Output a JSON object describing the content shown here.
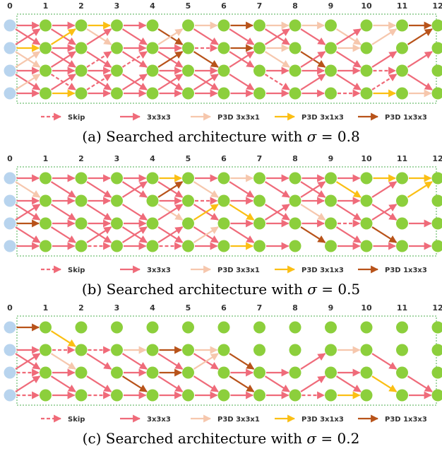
{
  "colors": {
    "skip": "#f06a78",
    "c333": "#ef6b7a",
    "p331": "#f6c7ad",
    "p313": "#fbbf14",
    "p133": "#b8531a",
    "node_green": "#8ccf3c",
    "node_blue": "#b8d4ee",
    "frame": "#4caf50"
  },
  "legend": [
    {
      "key": "skip",
      "label": "Skip",
      "dashed": true
    },
    {
      "key": "c333",
      "label": "3x3x3",
      "dashed": false
    },
    {
      "key": "p331",
      "label": "P3D 3x3x1",
      "dashed": false
    },
    {
      "key": "p313",
      "label": "P3D 3x1x3",
      "dashed": false
    },
    {
      "key": "p133",
      "label": "P3D 1x3x3",
      "dashed": false
    }
  ],
  "panels": [
    {
      "caption_prefix": "(a) Searched architecture with ",
      "caption_var": "σ",
      "caption_suffix": " = 0.8",
      "columns": [
        "0",
        "1",
        "2",
        "3",
        "4",
        "5",
        "6",
        "7",
        "8",
        "9",
        "10",
        "11",
        "12"
      ],
      "edges": [
        [
          0,
          0,
          0,
          "c333"
        ],
        [
          0,
          0,
          1,
          "c333"
        ],
        [
          0,
          1,
          0,
          "c333"
        ],
        [
          0,
          1,
          1,
          "p313"
        ],
        [
          0,
          1,
          2,
          "p331"
        ],
        [
          0,
          2,
          1,
          "p331"
        ],
        [
          0,
          2,
          2,
          "c333"
        ],
        [
          0,
          2,
          3,
          "c333"
        ],
        [
          0,
          3,
          2,
          "p331"
        ],
        [
          0,
          3,
          3,
          "c333"
        ],
        [
          1,
          0,
          0,
          "c333"
        ],
        [
          1,
          0,
          1,
          "c333"
        ],
        [
          1,
          1,
          0,
          "p313"
        ],
        [
          1,
          1,
          1,
          "c333"
        ],
        [
          1,
          1,
          2,
          "c333"
        ],
        [
          1,
          2,
          1,
          "c333"
        ],
        [
          1,
          2,
          2,
          "c333"
        ],
        [
          1,
          2,
          3,
          "skip"
        ],
        [
          1,
          3,
          2,
          "c333"
        ],
        [
          1,
          3,
          3,
          "p313"
        ],
        [
          2,
          0,
          0,
          "p313"
        ],
        [
          2,
          0,
          1,
          "p331"
        ],
        [
          2,
          1,
          0,
          "c333"
        ],
        [
          2,
          1,
          2,
          "c333"
        ],
        [
          2,
          2,
          1,
          "skip"
        ],
        [
          2,
          2,
          2,
          "c333"
        ],
        [
          2,
          2,
          3,
          "c333"
        ],
        [
          2,
          3,
          3,
          "c333"
        ],
        [
          2,
          3,
          2,
          "skip"
        ],
        [
          3,
          0,
          0,
          "c333"
        ],
        [
          3,
          0,
          1,
          "c333"
        ],
        [
          3,
          1,
          1,
          "c333"
        ],
        [
          3,
          1,
          2,
          "c333"
        ],
        [
          3,
          2,
          1,
          "skip"
        ],
        [
          3,
          2,
          3,
          "c333"
        ],
        [
          3,
          3,
          2,
          "c333"
        ],
        [
          3,
          3,
          3,
          "c333"
        ],
        [
          4,
          0,
          1,
          "p133"
        ],
        [
          4,
          1,
          0,
          "p331"
        ],
        [
          4,
          1,
          1,
          "c333"
        ],
        [
          4,
          1,
          2,
          "c333"
        ],
        [
          4,
          2,
          1,
          "p133"
        ],
        [
          4,
          2,
          2,
          "c333"
        ],
        [
          4,
          2,
          3,
          "c333"
        ],
        [
          4,
          3,
          2,
          "c333"
        ],
        [
          4,
          3,
          3,
          "c333"
        ],
        [
          5,
          0,
          0,
          "p331"
        ],
        [
          5,
          0,
          1,
          "c333"
        ],
        [
          5,
          1,
          1,
          "skip"
        ],
        [
          5,
          1,
          2,
          "p133"
        ],
        [
          5,
          2,
          2,
          "c333"
        ],
        [
          5,
          2,
          3,
          "c333"
        ],
        [
          5,
          3,
          2,
          "c333"
        ],
        [
          5,
          3,
          3,
          "c333"
        ],
        [
          6,
          0,
          0,
          "p133"
        ],
        [
          6,
          0,
          1,
          "c333"
        ],
        [
          6,
          1,
          1,
          "p133"
        ],
        [
          6,
          1,
          2,
          "c333"
        ],
        [
          6,
          2,
          1,
          "c333"
        ],
        [
          6,
          2,
          3,
          "c333"
        ],
        [
          6,
          3,
          3,
          "c333"
        ],
        [
          7,
          0,
          0,
          "p331"
        ],
        [
          7,
          0,
          1,
          "c333"
        ],
        [
          7,
          1,
          0,
          "c333"
        ],
        [
          7,
          1,
          1,
          "p331"
        ],
        [
          7,
          1,
          2,
          "p331"
        ],
        [
          7,
          2,
          2,
          "c333"
        ],
        [
          7,
          2,
          3,
          "skip"
        ],
        [
          7,
          3,
          3,
          "c333"
        ],
        [
          8,
          0,
          0,
          "p331"
        ],
        [
          8,
          0,
          1,
          "c333"
        ],
        [
          8,
          1,
          2,
          "p133"
        ],
        [
          8,
          2,
          1,
          "c333"
        ],
        [
          8,
          2,
          2,
          "c333"
        ],
        [
          8,
          3,
          2,
          "c333"
        ],
        [
          8,
          3,
          3,
          "c333"
        ],
        [
          9,
          0,
          1,
          "p331"
        ],
        [
          9,
          1,
          0,
          "c333"
        ],
        [
          9,
          1,
          1,
          "p331"
        ],
        [
          9,
          1,
          2,
          "c333"
        ],
        [
          9,
          2,
          2,
          "c333"
        ],
        [
          9,
          2,
          3,
          "c333"
        ],
        [
          9,
          3,
          3,
          "skip"
        ],
        [
          10,
          0,
          0,
          "p331"
        ],
        [
          10,
          1,
          0,
          "p331"
        ],
        [
          10,
          2,
          1,
          "c333"
        ],
        [
          10,
          2,
          2,
          "skip"
        ],
        [
          10,
          3,
          2,
          "skip"
        ],
        [
          10,
          3,
          3,
          "p313"
        ],
        [
          11,
          0,
          0,
          "p133"
        ],
        [
          11,
          1,
          0,
          "p133"
        ],
        [
          11,
          2,
          1,
          "c333"
        ],
        [
          11,
          2,
          3,
          "c333"
        ],
        [
          11,
          3,
          3,
          "p331"
        ]
      ]
    },
    {
      "caption_prefix": "(b) Searched architecture with ",
      "caption_var": "σ",
      "caption_suffix": " = 0.5",
      "columns": [
        "0",
        "1",
        "2",
        "3",
        "4",
        "5",
        "6",
        "7",
        "8",
        "9",
        "10",
        "11",
        "12"
      ],
      "edges": [
        [
          0,
          0,
          0,
          "c333"
        ],
        [
          0,
          0,
          1,
          "p331"
        ],
        [
          0,
          1,
          1,
          "c333"
        ],
        [
          0,
          1,
          2,
          "c333"
        ],
        [
          0,
          2,
          1,
          "c333"
        ],
        [
          0,
          2,
          2,
          "p133"
        ],
        [
          0,
          2,
          3,
          "c333"
        ],
        [
          0,
          3,
          3,
          "c333"
        ],
        [
          1,
          0,
          0,
          "c333"
        ],
        [
          1,
          0,
          1,
          "c333"
        ],
        [
          1,
          1,
          1,
          "c333"
        ],
        [
          1,
          1,
          2,
          "c333"
        ],
        [
          1,
          2,
          2,
          "c333"
        ],
        [
          1,
          2,
          3,
          "c333"
        ],
        [
          1,
          3,
          3,
          "c333"
        ],
        [
          2,
          0,
          0,
          "c333"
        ],
        [
          2,
          0,
          1,
          "c333"
        ],
        [
          2,
          1,
          1,
          "c333"
        ],
        [
          2,
          1,
          2,
          "c333"
        ],
        [
          2,
          2,
          2,
          "c333"
        ],
        [
          2,
          2,
          3,
          "c333"
        ],
        [
          2,
          3,
          3,
          "skip"
        ],
        [
          2,
          3,
          2,
          "c333"
        ],
        [
          3,
          0,
          0,
          "c333"
        ],
        [
          3,
          0,
          1,
          "c333"
        ],
        [
          3,
          1,
          0,
          "c333"
        ],
        [
          3,
          1,
          2,
          "c333"
        ],
        [
          3,
          2,
          2,
          "c333"
        ],
        [
          3,
          2,
          3,
          "c333"
        ],
        [
          3,
          3,
          2,
          "c333"
        ],
        [
          3,
          3,
          3,
          "c333"
        ],
        [
          4,
          0,
          0,
          "p313"
        ],
        [
          4,
          0,
          1,
          "c333"
        ],
        [
          4,
          1,
          0,
          "p133"
        ],
        [
          4,
          1,
          1,
          "c333"
        ],
        [
          4,
          1,
          2,
          "p331"
        ],
        [
          4,
          2,
          1,
          "c333"
        ],
        [
          4,
          2,
          3,
          "c333"
        ],
        [
          4,
          3,
          2,
          "c333"
        ],
        [
          4,
          3,
          3,
          "skip"
        ],
        [
          5,
          0,
          0,
          "c333"
        ],
        [
          5,
          0,
          1,
          "p331"
        ],
        [
          5,
          1,
          1,
          "skip"
        ],
        [
          5,
          1,
          2,
          "c333"
        ],
        [
          5,
          2,
          1,
          "p313"
        ],
        [
          5,
          2,
          3,
          "c333"
        ],
        [
          5,
          3,
          2,
          "p331"
        ],
        [
          5,
          3,
          3,
          "c333"
        ],
        [
          6,
          0,
          0,
          "p331"
        ],
        [
          6,
          0,
          1,
          "c333"
        ],
        [
          6,
          1,
          1,
          "c333"
        ],
        [
          6,
          1,
          2,
          "p313"
        ],
        [
          6,
          2,
          2,
          "c333"
        ],
        [
          6,
          2,
          3,
          "c333"
        ],
        [
          6,
          3,
          3,
          "p313"
        ],
        [
          7,
          0,
          0,
          "c333"
        ],
        [
          7,
          0,
          1,
          "c333"
        ],
        [
          7,
          1,
          2,
          "c333"
        ],
        [
          7,
          2,
          1,
          "c333"
        ],
        [
          7,
          2,
          2,
          "c333"
        ],
        [
          7,
          3,
          3,
          "c333"
        ],
        [
          8,
          0,
          0,
          "c333"
        ],
        [
          8,
          0,
          1,
          "c333"
        ],
        [
          8,
          1,
          0,
          "c333"
        ],
        [
          8,
          1,
          1,
          "c333"
        ],
        [
          8,
          1,
          2,
          "p331"
        ],
        [
          8,
          2,
          2,
          "c333"
        ],
        [
          8,
          2,
          3,
          "p133"
        ],
        [
          9,
          0,
          1,
          "p313"
        ],
        [
          9,
          0,
          0,
          "c333"
        ],
        [
          9,
          1,
          1,
          "c333"
        ],
        [
          9,
          1,
          2,
          "c333"
        ],
        [
          9,
          2,
          2,
          "skip"
        ],
        [
          9,
          2,
          3,
          "c333"
        ],
        [
          9,
          3,
          3,
          "c333"
        ],
        [
          10,
          0,
          0,
          "p313"
        ],
        [
          10,
          1,
          0,
          "c333"
        ],
        [
          10,
          1,
          2,
          "c333"
        ],
        [
          10,
          2,
          1,
          "c333"
        ],
        [
          10,
          2,
          3,
          "p133"
        ],
        [
          10,
          3,
          3,
          "c333"
        ],
        [
          11,
          0,
          0,
          "p313"
        ],
        [
          11,
          1,
          0,
          "p313"
        ],
        [
          11,
          2,
          2,
          "c333"
        ],
        [
          11,
          3,
          3,
          "c333"
        ]
      ]
    },
    {
      "caption_prefix": "(c) Searched architecture with ",
      "caption_var": "σ",
      "caption_suffix": " = 0.2",
      "columns": [
        "0",
        "1",
        "2",
        "3",
        "4",
        "5",
        "6",
        "7",
        "8",
        "9",
        "10",
        "11",
        "12"
      ],
      "edges": [
        [
          0,
          0,
          0,
          "p133"
        ],
        [
          0,
          1,
          1,
          "c333"
        ],
        [
          0,
          1,
          2,
          "c333"
        ],
        [
          0,
          2,
          2,
          "skip"
        ],
        [
          0,
          2,
          1,
          "c333"
        ],
        [
          0,
          3,
          3,
          "skip"
        ],
        [
          0,
          3,
          2,
          "c333"
        ],
        [
          1,
          0,
          1,
          "p313"
        ],
        [
          1,
          1,
          1,
          "skip"
        ],
        [
          1,
          1,
          2,
          "p331"
        ],
        [
          1,
          2,
          2,
          "c333"
        ],
        [
          1,
          2,
          3,
          "c333"
        ],
        [
          1,
          3,
          3,
          "c333"
        ],
        [
          2,
          1,
          1,
          "skip"
        ],
        [
          2,
          1,
          2,
          "c333"
        ],
        [
          2,
          2,
          3,
          "c333"
        ],
        [
          2,
          3,
          3,
          "skip"
        ],
        [
          3,
          1,
          1,
          "p331"
        ],
        [
          3,
          1,
          2,
          "c333"
        ],
        [
          3,
          2,
          2,
          "c333"
        ],
        [
          3,
          2,
          3,
          "p133"
        ],
        [
          3,
          3,
          3,
          "c333"
        ],
        [
          4,
          1,
          1,
          "p133"
        ],
        [
          4,
          1,
          2,
          "c333"
        ],
        [
          4,
          2,
          2,
          "p133"
        ],
        [
          4,
          2,
          3,
          "c333"
        ],
        [
          4,
          3,
          3,
          "c333"
        ],
        [
          5,
          1,
          1,
          "p331"
        ],
        [
          5,
          1,
          2,
          "c333"
        ],
        [
          5,
          2,
          1,
          "p331"
        ],
        [
          5,
          2,
          3,
          "c333"
        ],
        [
          5,
          3,
          3,
          "c333"
        ],
        [
          6,
          1,
          2,
          "p133"
        ],
        [
          6,
          2,
          2,
          "c333"
        ],
        [
          6,
          2,
          3,
          "p133"
        ],
        [
          6,
          3,
          3,
          "c333"
        ],
        [
          7,
          2,
          2,
          "c333"
        ],
        [
          7,
          2,
          3,
          "c333"
        ],
        [
          7,
          3,
          3,
          "c333"
        ],
        [
          8,
          2,
          1,
          "c333"
        ],
        [
          8,
          3,
          3,
          "skip"
        ],
        [
          8,
          3,
          2,
          "c333"
        ],
        [
          9,
          1,
          1,
          "p331"
        ],
        [
          9,
          2,
          3,
          "c333"
        ],
        [
          9,
          2,
          2,
          "c333"
        ],
        [
          9,
          3,
          3,
          "p313"
        ],
        [
          10,
          1,
          2,
          "c333"
        ],
        [
          10,
          2,
          3,
          "p313"
        ],
        [
          11,
          2,
          3,
          "c333"
        ],
        [
          11,
          3,
          3,
          "c333"
        ]
      ]
    }
  ]
}
